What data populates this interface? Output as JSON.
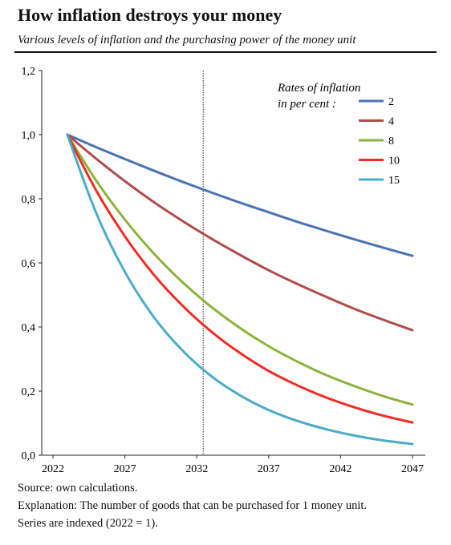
{
  "header": {
    "title": "How inflation destroys your money",
    "subtitle": "Various levels of inflation and the purchasing power of the money unit"
  },
  "notes": {
    "source": "Source: own calculations.",
    "explanation_1": "Explanation: The number of goods that can be purchased for 1 money unit.",
    "explanation_2": "Series are indexed (2022 = 1)."
  },
  "chart_data": {
    "type": "line",
    "title": "How inflation destroys your money",
    "subtitle": "Various levels of inflation and the purchasing power of the money unit",
    "legend_title_1": "Rates of inflation",
    "legend_title_2": "in per cent :",
    "legend_position": "top-right",
    "x_ticks": [
      "2022",
      "2027",
      "2032",
      "2037",
      "2042",
      "2047"
    ],
    "y_ticks": [
      "0,0",
      "0,2",
      "0,4",
      "0,6",
      "0,8",
      "1,0",
      "1,2"
    ],
    "xlim": [
      2022,
      2047
    ],
    "ylim": [
      0,
      1.2
    ],
    "marker_year": 2032,
    "x": [
      2023,
      2025,
      2027,
      2029,
      2031,
      2033,
      2035,
      2037,
      2039,
      2041,
      2043,
      2045,
      2047
    ],
    "series": [
      {
        "name": "2",
        "color": "#4a72b4",
        "values": [
          1.0,
          0.961,
          0.924,
          0.888,
          0.853,
          0.82,
          0.788,
          0.758,
          0.728,
          0.7,
          0.673,
          0.647,
          0.622
        ]
      },
      {
        "name": "4",
        "color": "#b04d4a",
        "values": [
          1.0,
          0.925,
          0.855,
          0.79,
          0.731,
          0.676,
          0.625,
          0.577,
          0.534,
          0.494,
          0.456,
          0.422,
          0.39
        ]
      },
      {
        "name": "8",
        "color": "#8cb33b",
        "values": [
          1.0,
          0.857,
          0.735,
          0.63,
          0.54,
          0.463,
          0.397,
          0.34,
          0.292,
          0.25,
          0.215,
          0.184,
          0.158
        ]
      },
      {
        "name": "10",
        "color": "#f22b23",
        "values": [
          1.0,
          0.826,
          0.683,
          0.564,
          0.467,
          0.386,
          0.319,
          0.263,
          0.218,
          0.18,
          0.149,
          0.123,
          0.102
        ]
      },
      {
        "name": "15",
        "color": "#4aacc6",
        "values": [
          1.0,
          0.756,
          0.572,
          0.432,
          0.327,
          0.247,
          0.187,
          0.141,
          0.107,
          0.081,
          0.061,
          0.046,
          0.035
        ]
      }
    ]
  }
}
